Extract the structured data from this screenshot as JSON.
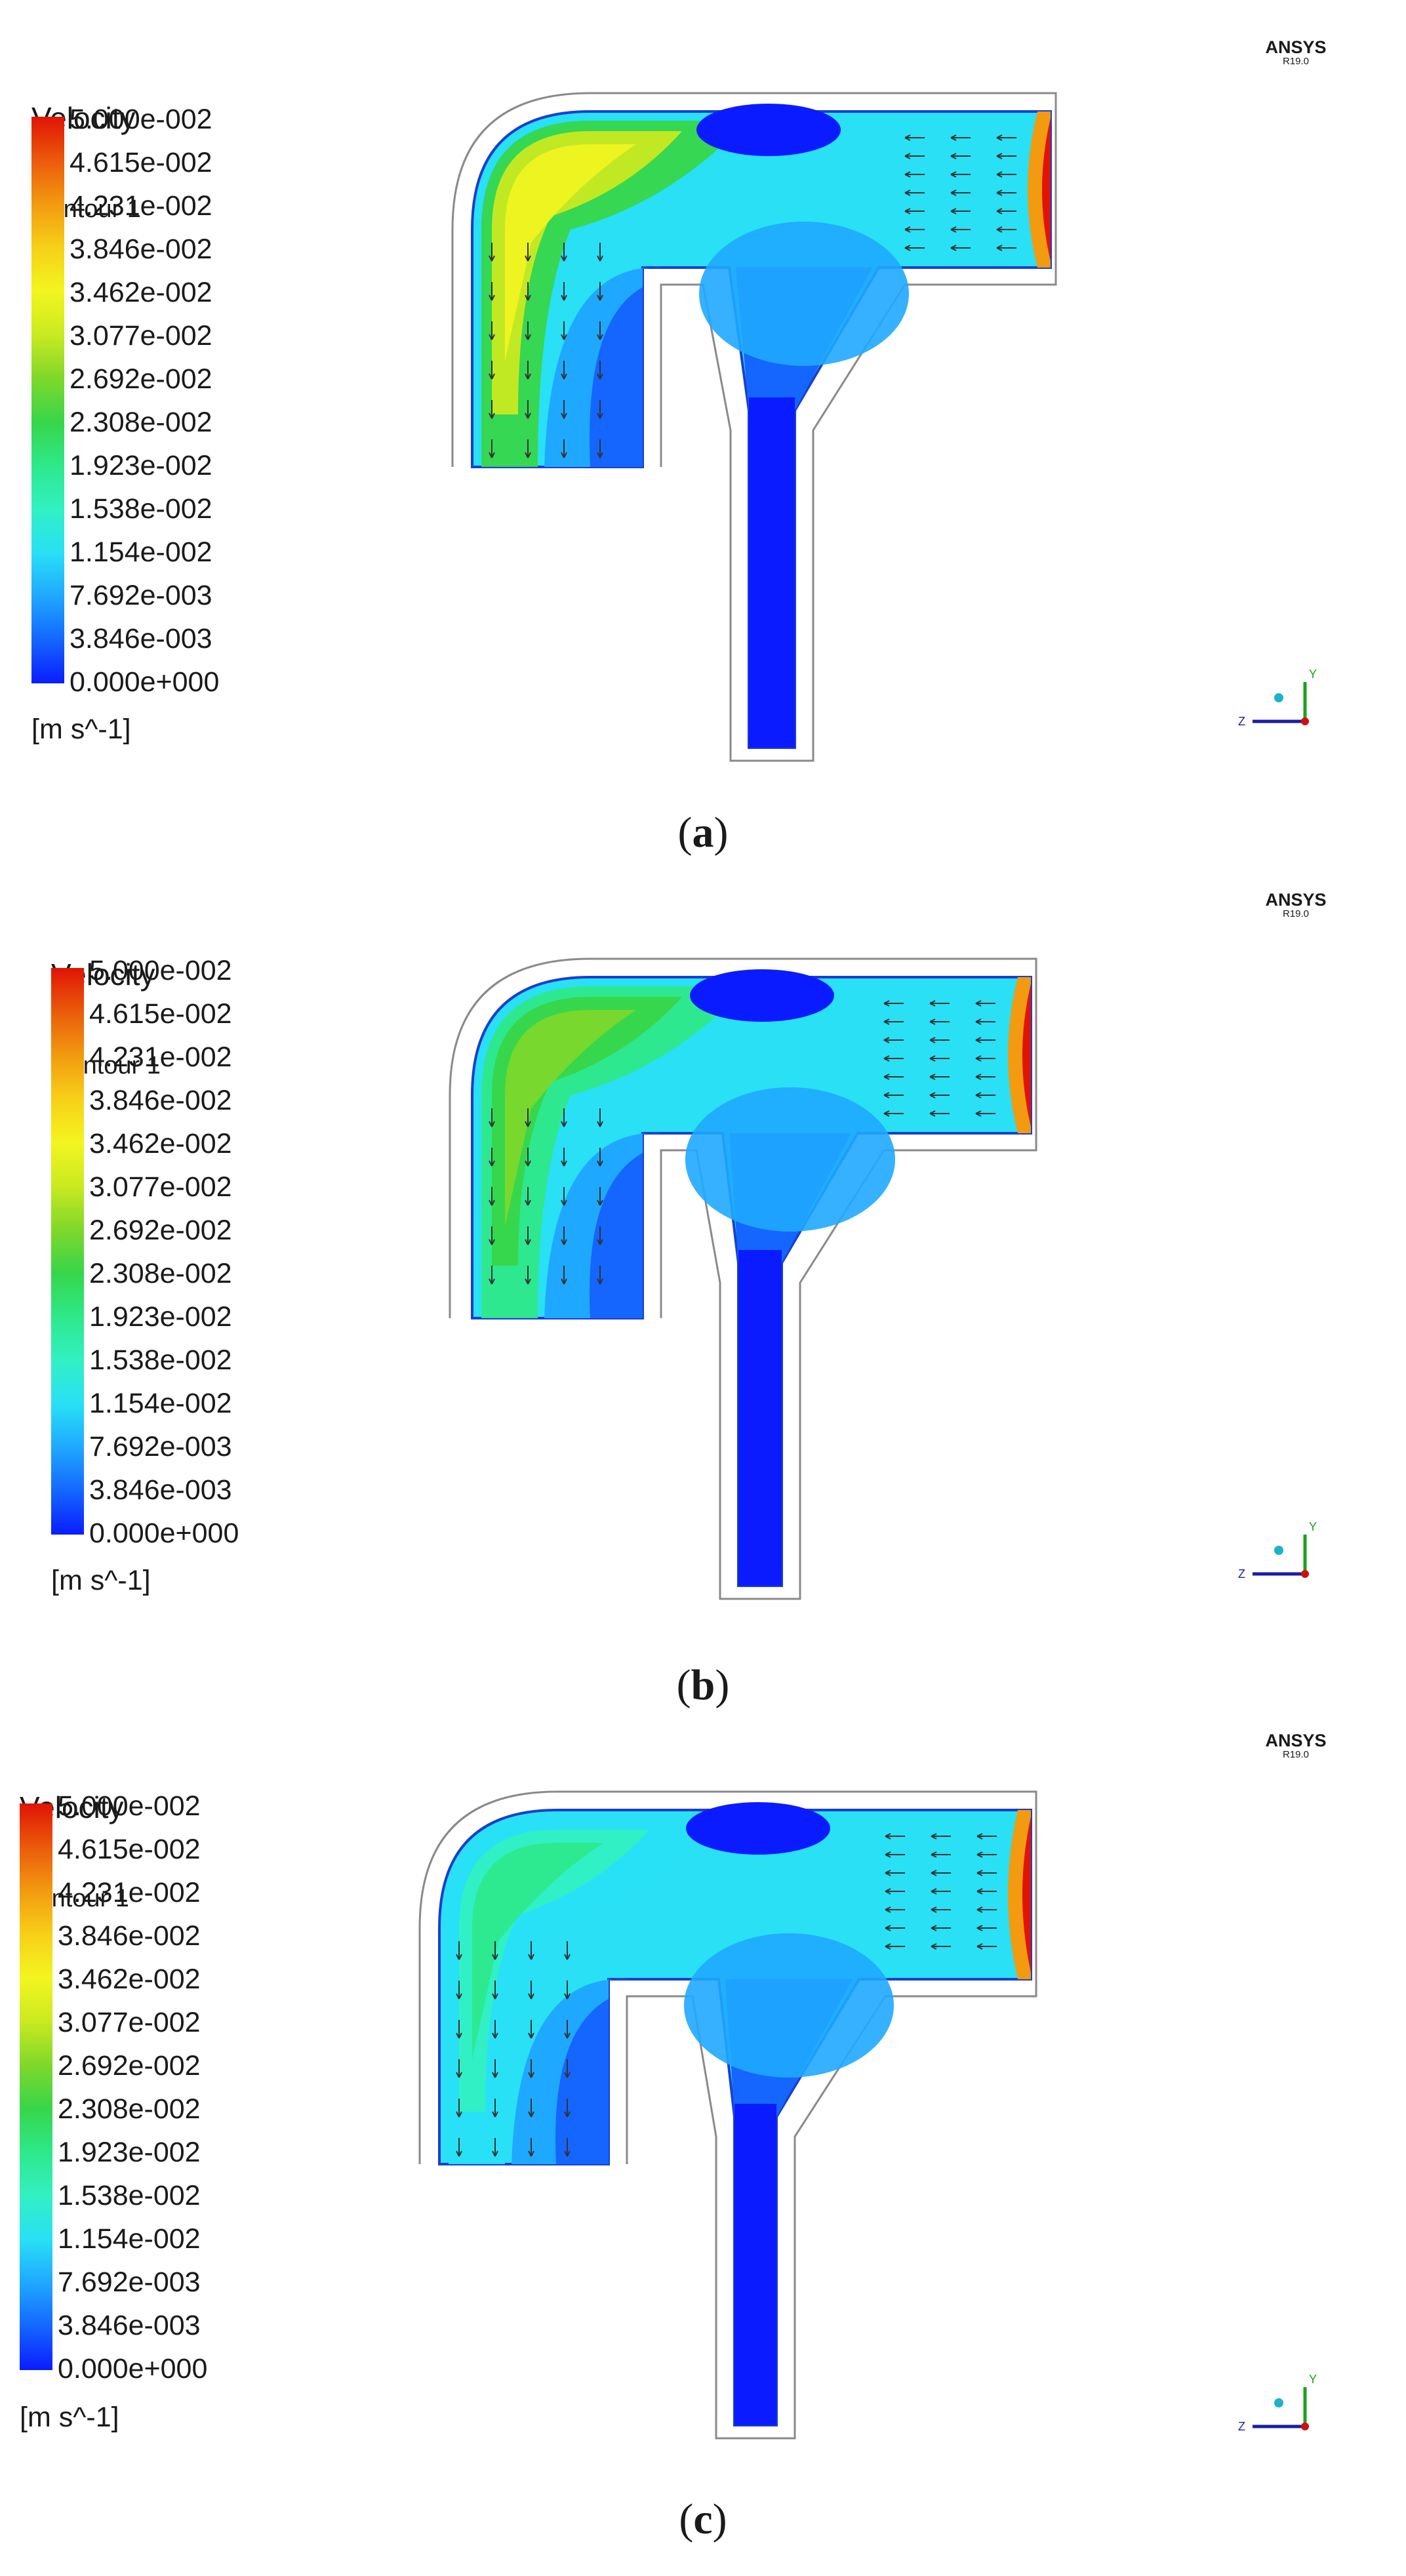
{
  "legend": {
    "title_line1": "Velocity",
    "title_line2": "Contour 1",
    "units": "[m s^-1]",
    "ticks": [
      "5.000e-002",
      "4.615e-002",
      "4.231e-002",
      "3.846e-002",
      "3.462e-002",
      "3.077e-002",
      "2.692e-002",
      "2.308e-002",
      "1.923e-002",
      "1.538e-002",
      "1.154e-002",
      "7.692e-003",
      "3.846e-003",
      "0.000e+000"
    ],
    "colors": [
      "#0a1cff",
      "#1466ff",
      "#1fa8ff",
      "#29e0f5",
      "#32f0c2",
      "#2ee88a",
      "#37d64a",
      "#7fd82a",
      "#c9ea21",
      "#f3f51f",
      "#f7d018",
      "#f29a10",
      "#eb5a0b",
      "#e01405"
    ]
  },
  "brand": {
    "name": "ANSYS",
    "version": "R19.0"
  },
  "axes": {
    "y": "Y",
    "z": "Z"
  },
  "panels": [
    {
      "caption_letter": "a",
      "caption_open": "(",
      "caption_close": ")"
    },
    {
      "caption_letter": "b",
      "caption_open": "(",
      "caption_close": ")"
    },
    {
      "caption_letter": "c",
      "caption_open": "(",
      "caption_close": ")"
    }
  ]
}
